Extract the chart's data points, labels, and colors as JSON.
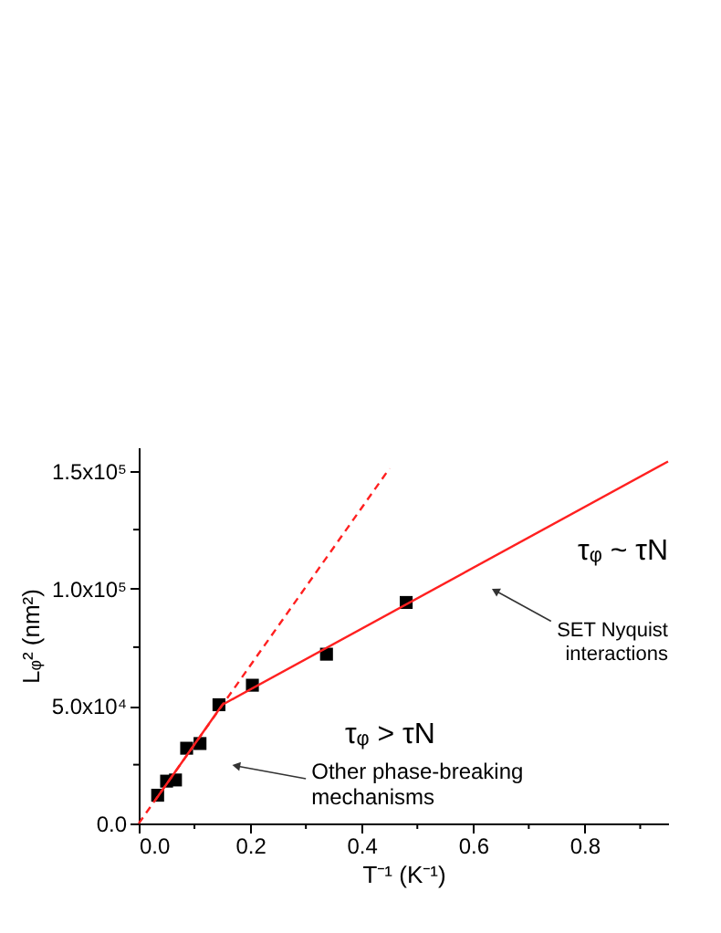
{
  "chart_data": {
    "type": "scatter",
    "xlabel": "T⁻¹ (K⁻¹)",
    "ylabel": "Lᵩ² (nm²)",
    "xlim": [
      0,
      0.95
    ],
    "ylim": [
      0,
      160000
    ],
    "xticks": [
      {
        "value": 0,
        "label": "0.0"
      },
      {
        "value": 0.1,
        "label": null
      },
      {
        "value": 0.2,
        "label": "0.2"
      },
      {
        "value": 0.3,
        "label": null
      },
      {
        "value": 0.4,
        "label": "0.4"
      },
      {
        "value": 0.5,
        "label": null
      },
      {
        "value": 0.6,
        "label": "0.6"
      },
      {
        "value": 0.7,
        "label": null
      },
      {
        "value": 0.8,
        "label": "0.8"
      },
      {
        "value": 0.9,
        "label": null
      }
    ],
    "yticks": [
      {
        "value": 0,
        "label": "0.0"
      },
      {
        "value": 25000,
        "label": null
      },
      {
        "value": 50000,
        "label": "5.0x10⁴"
      },
      {
        "value": 75000,
        "label": null
      },
      {
        "value": 100000,
        "label": "1.0x10⁵"
      },
      {
        "value": 125000,
        "label": null
      },
      {
        "value": 150000,
        "label": "1.5x10⁵"
      }
    ],
    "series": [
      {
        "marker": "square",
        "color": "#000000",
        "x": [
          0.034,
          0.05,
          0.066,
          0.086,
          0.11,
          0.144,
          0.204,
          0.337,
          0.48
        ],
        "values": [
          12000,
          18000,
          18500,
          32000,
          34000,
          50500,
          58800,
          72000,
          94000
        ]
      },
      {
        "type": "line",
        "line_style": "dashed",
        "color": "#ff2020",
        "x": [
          0,
          0.45
        ],
        "values": [
          0,
          151000
        ]
      },
      {
        "type": "line",
        "line_style": "solid",
        "color": "#ff2020",
        "x": [
          0.03,
          0.15
        ],
        "values": [
          10000,
          50500
        ]
      },
      {
        "type": "line",
        "line_style": "solid",
        "color": "#ff2020",
        "x": [
          0.15,
          0.95
        ],
        "values": [
          50500,
          154000
        ]
      }
    ],
    "annotations": [
      "τᵩ ~ τN",
      {
        "text": "SET Nyquist\ninteractions",
        "x": 0.64,
        "y": 99000
      },
      "τᵩ > τN",
      {
        "text": "Other phase-breaking\nmechanisms",
        "x": 0.175,
        "y": 24500
      }
    ]
  }
}
